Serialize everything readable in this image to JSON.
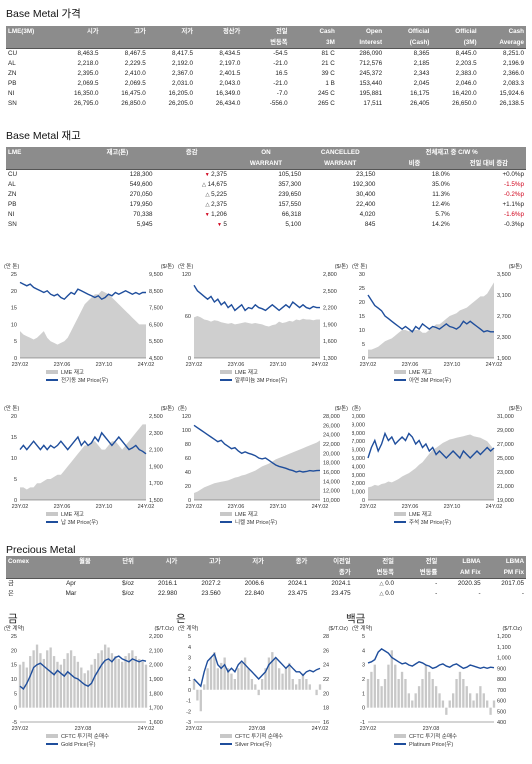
{
  "sections": {
    "price_title": "Base Metal 가격",
    "stock_title": "Base Metal 재고",
    "precious_title": "Precious Metal"
  },
  "price_table": {
    "headers": [
      [
        "LME(3M)",
        ""
      ],
      [
        "시가",
        ""
      ],
      [
        "고가",
        ""
      ],
      [
        "저가",
        ""
      ],
      [
        "정산가",
        ""
      ],
      [
        "전일",
        "변동폭"
      ],
      [
        "Cash",
        "3M"
      ],
      [
        "Open",
        "Interest"
      ],
      [
        "Official",
        "(Cash)"
      ],
      [
        "Official",
        "(3M)"
      ],
      [
        "Cash",
        "Average"
      ]
    ],
    "rows": [
      [
        "CU",
        "8,463.5",
        "8,467.5",
        "8,417.5",
        "8,434.5",
        "-54.5",
        "81 C",
        "286,090",
        "8,365",
        "8,445.0",
        "8,251.0"
      ],
      [
        "AL",
        "2,218.0",
        "2,229.5",
        "2,192.0",
        "2,197.0",
        "-21.0",
        "21 C",
        "712,576",
        "2,185",
        "2,203.5",
        "2,196.9"
      ],
      [
        "ZN",
        "2,395.0",
        "2,410.0",
        "2,367.0",
        "2,401.5",
        "16.5",
        "39 C",
        "245,372",
        "2,343",
        "2,383.0",
        "2,366.0"
      ],
      [
        "PB",
        "2,069.5",
        "2,069.5",
        "2,031.0",
        "2,043.0",
        "-21.0",
        "1 B",
        "153,440",
        "2,045",
        "2,046.0",
        "2,083.3"
      ],
      [
        "NI",
        "16,350.0",
        "16,475.0",
        "16,205.0",
        "16,349.0",
        "-7.0",
        "245 C",
        "195,881",
        "16,175",
        "16,420.0",
        "15,924.6"
      ],
      [
        "SN",
        "26,795.0",
        "26,850.0",
        "26,205.0",
        "26,434.0",
        "-556.0",
        "265 C",
        "17,511",
        "26,405",
        "26,650.0",
        "26,138.5"
      ]
    ]
  },
  "stock_table": {
    "headers": [
      "LME",
      "재고(톤)",
      "증감",
      "ON",
      "CANCELLED",
      "전체재고 중 C/W %"
    ],
    "headers2": [
      "",
      "",
      "",
      "WARRANT",
      "WARRANT",
      "비중",
      "전일 대비 증감"
    ],
    "rows": [
      {
        "metal": "CU",
        "stock": "128,300",
        "change": "2,375",
        "dir": "dn",
        "on": "105,150",
        "cancelled": "23,150",
        "share": "18.0%",
        "delta": "+0.0%p",
        "neg": false
      },
      {
        "metal": "AL",
        "stock": "549,600",
        "change": "14,675",
        "dir": "up",
        "on": "357,300",
        "cancelled": "192,300",
        "share": "35.0%",
        "delta": "-1.5%p",
        "neg": true
      },
      {
        "metal": "ZN",
        "stock": "270,050",
        "change": "5,225",
        "dir": "up",
        "on": "239,650",
        "cancelled": "30,400",
        "share": "11.3%",
        "delta": "-0.2%p",
        "neg": true
      },
      {
        "metal": "PB",
        "stock": "179,950",
        "change": "2,375",
        "dir": "up",
        "on": "157,550",
        "cancelled": "22,400",
        "share": "12.4%",
        "delta": "+1.1%p",
        "neg": false
      },
      {
        "metal": "NI",
        "stock": "70,338",
        "change": "1,206",
        "dir": "dn",
        "on": "66,318",
        "cancelled": "4,020",
        "share": "5.7%",
        "delta": "-1.6%p",
        "neg": true
      },
      {
        "metal": "SN",
        "stock": "5,945",
        "change": "5",
        "dir": "dn",
        "on": "5,100",
        "cancelled": "845",
        "share": "14.2%",
        "delta": "-0.3%p",
        "neg": false
      }
    ]
  },
  "precious_table": {
    "headers": [
      [
        "Comex",
        ""
      ],
      [
        "월물",
        ""
      ],
      [
        "단위",
        ""
      ],
      [
        "시가",
        ""
      ],
      [
        "고가",
        ""
      ],
      [
        "저가",
        ""
      ],
      [
        "종가",
        ""
      ],
      [
        "이전일",
        "종가"
      ],
      [
        "전일",
        "변동폭"
      ],
      [
        "전일",
        "변동률"
      ],
      [
        "LBMA",
        "AM Fix"
      ],
      [
        "LBMA",
        "PM Fix"
      ]
    ],
    "rows": [
      [
        "금",
        "Apr",
        "$/oz",
        "2016.1",
        "2027.2",
        "2006.6",
        "2024.1",
        "2024.1",
        "0.0",
        "-",
        "2020.35",
        "2017.05"
      ],
      [
        "은",
        "Mar",
        "$/oz",
        "22.980",
        "23.560",
        "22.840",
        "23.475",
        "23.475",
        "0.0",
        "-",
        "-",
        "-"
      ]
    ]
  },
  "base_charts": [
    {
      "left_unit": "(만 톤)",
      "right_unit": "($/톤)",
      "left_ticks": [
        "0",
        "5",
        "10",
        "15",
        "20",
        "25"
      ],
      "right_ticks": [
        "4,500",
        "5,500",
        "6,500",
        "7,500",
        "8,500",
        "9,500"
      ],
      "legend1": "LME 재고",
      "legend2": "전기동 3M Price(우)",
      "x_ticks": [
        "23Y.02",
        "23Y.06",
        "23Y.10",
        "24Y.02"
      ],
      "stock": [
        8,
        7,
        6.5,
        6,
        5.5,
        6,
        7,
        8,
        6,
        5,
        4.5,
        4,
        4.5,
        5,
        6,
        8,
        10,
        12,
        14,
        16,
        17,
        18,
        19,
        19,
        20,
        19.5,
        19,
        18,
        17,
        16,
        15,
        14,
        13,
        12,
        11,
        10,
        10,
        10
      ],
      "price": [
        9000,
        8900,
        8800,
        8900,
        8700,
        8600,
        8500,
        8400,
        8500,
        8300,
        8200,
        8300,
        8100,
        8000,
        8200,
        8400,
        8300,
        8600,
        8500,
        8400,
        8300,
        8200,
        8100,
        8200,
        8000,
        8100,
        8300,
        8200,
        8400,
        8300,
        8400,
        8500,
        8400,
        8300,
        8400,
        8300,
        8400,
        8400
      ]
    },
    {
      "left_unit": "(만 톤)",
      "right_unit": "($/톤)",
      "left_ticks": [
        "0",
        "60",
        "120"
      ],
      "right_ticks": [
        "1,300",
        "1,600",
        "1,900",
        "2,200",
        "2,500",
        "2,800"
      ],
      "legend1": "LME 재고",
      "legend2": "알루미늄 3M Price(우)",
      "x_ticks": [
        "23Y.02",
        "23Y.06",
        "23Y.10",
        "24Y.02"
      ],
      "stock": [
        58,
        60,
        58,
        55,
        54,
        52,
        54,
        53,
        51,
        50,
        49,
        50,
        48,
        49,
        50,
        51,
        50,
        49,
        50,
        49,
        48,
        46,
        45,
        47,
        48,
        52,
        50,
        51,
        53,
        52,
        55,
        54,
        56,
        55,
        55,
        54,
        55,
        55
      ],
      "price": [
        2600,
        2500,
        2450,
        2400,
        2350,
        2400,
        2300,
        2350,
        2250,
        2300,
        2200,
        2250,
        2150,
        2200,
        2250,
        2150,
        2200,
        2180,
        2250,
        2200,
        2180,
        2150,
        2200,
        2250,
        2200,
        2150,
        2200,
        2250,
        2200,
        2300,
        2250,
        2200,
        2250,
        2200,
        2180,
        2220,
        2200,
        2200
      ]
    },
    {
      "left_unit": "(만 톤)",
      "right_unit": "($/톤)",
      "left_ticks": [
        "0",
        "5",
        "10",
        "15",
        "20",
        "25",
        "30"
      ],
      "right_ticks": [
        "1,900",
        "2,300",
        "2,700",
        "3,100",
        "3,500"
      ],
      "legend1": "LME 재고",
      "legend2": "아연 3M Price(우)",
      "x_ticks": [
        "23Y.02",
        "23Y.06",
        "23Y.10",
        "24Y.02"
      ],
      "stock": [
        3,
        3,
        3.5,
        4,
        5,
        6,
        6.5,
        7,
        8,
        9,
        10,
        10,
        9.5,
        10,
        10,
        10,
        9,
        9,
        10,
        11,
        12,
        12,
        13,
        14,
        15,
        15.5,
        16,
        17,
        17.5,
        18,
        19,
        20,
        21,
        22,
        22,
        23,
        25,
        27
      ],
      "price": [
        3100,
        3000,
        2900,
        2850,
        2800,
        2700,
        2650,
        2600,
        2550,
        2500,
        2450,
        2500,
        2450,
        2400,
        2500,
        2450,
        2550,
        2500,
        2450,
        2500,
        2480,
        2450,
        2500,
        2550,
        2500,
        2480,
        2450,
        2500,
        2600,
        2550,
        2600,
        2550,
        2500,
        2450,
        2400,
        2420,
        2400,
        2400
      ]
    },
    {
      "left_unit": "(만 톤)",
      "right_unit": "($/톤)",
      "left_ticks": [
        "0",
        "5",
        "10",
        "15",
        "20"
      ],
      "right_ticks": [
        "1,500",
        "1,700",
        "1,900",
        "2,100",
        "2,300",
        "2,500"
      ],
      "legend1": "LME 재고",
      "legend2": "납 3M Price(우)",
      "x_ticks": [
        "23Y.02",
        "23Y.06",
        "23Y.10",
        "24Y.02"
      ],
      "stock": [
        3,
        3,
        2.5,
        3,
        3,
        4,
        4,
        4.5,
        5,
        5,
        5.5,
        6,
        6,
        7,
        8,
        9,
        10,
        11,
        12,
        13,
        13,
        14,
        14,
        13,
        12,
        12,
        13,
        14,
        14,
        13,
        12,
        13,
        14,
        15,
        16,
        17,
        18,
        18
      ],
      "price": [
        2100,
        2150,
        2100,
        2150,
        2200,
        2150,
        2100,
        2150,
        2100,
        2150,
        2120,
        2150,
        2200,
        2150,
        2100,
        2150,
        2200,
        2250,
        2150,
        2200,
        2150,
        2180,
        2250,
        2200,
        2300,
        2250,
        2200,
        2150,
        2200,
        2250,
        2200,
        2150,
        2100,
        2120,
        2150,
        2100,
        2080,
        2050
      ]
    },
    {
      "left_unit": "(톤)",
      "right_unit": "($/톤)",
      "left_ticks": [
        "0",
        "20",
        "40",
        "60",
        "80",
        "100",
        "120"
      ],
      "right_ticks": [
        "10,000",
        "12,000",
        "14,000",
        "16,000",
        "18,000",
        "20,000",
        "22,000",
        "24,000",
        "26,000",
        "28,000"
      ],
      "legend1": "LME 재고",
      "legend2": "니켈 3M Price(우)",
      "x_ticks": [
        "23Y.02",
        "23Y.06",
        "23Y.10",
        "24Y.02"
      ],
      "stock": [
        10,
        12,
        15,
        18,
        20,
        22,
        24,
        25,
        26,
        27,
        28,
        30,
        32,
        33,
        35,
        36,
        38,
        40,
        42,
        45,
        48,
        50,
        52,
        55,
        58,
        60,
        62,
        64,
        66,
        68,
        70,
        72,
        74,
        76,
        78,
        80,
        82,
        85
      ],
      "price": [
        26000,
        25500,
        25000,
        24500,
        24000,
        23500,
        23000,
        22500,
        22800,
        22000,
        21500,
        21000,
        21200,
        20500,
        20000,
        20300,
        20000,
        19800,
        19500,
        19000,
        18800,
        19000,
        18500,
        18000,
        17500,
        17200,
        17000,
        16800,
        16500,
        16300,
        16000,
        16200,
        16000,
        16100,
        16300,
        16200,
        16300,
        16349
      ]
    },
    {
      "left_unit": "(톤)",
      "right_unit": "($/톤)",
      "left_ticks": [
        "0",
        "1,000",
        "2,000",
        "3,000",
        "4,000",
        "5,000",
        "6,000",
        "7,000",
        "8,000",
        "9,000",
        "10,000"
      ],
      "right_ticks": [
        "19,000",
        "21,000",
        "23,000",
        "25,000",
        "27,000",
        "29,000",
        "31,000"
      ],
      "legend1": "LME 재고",
      "legend2": "주석 3M Price(우)",
      "x_ticks": [
        "23Y.02",
        "23Y.06",
        "23Y.10",
        "24Y.02"
      ],
      "stock": [
        1500,
        1600,
        1800,
        1700,
        1900,
        2000,
        2200,
        2100,
        2300,
        2500,
        2800,
        3000,
        3200,
        3500,
        3800,
        4200,
        4500,
        5000,
        5500,
        6000,
        6200,
        6500,
        6800,
        7000,
        7200,
        7300,
        7400,
        7500,
        7600,
        7700,
        7800,
        7600,
        7500,
        7400,
        7200,
        7000,
        6500,
        6000
      ],
      "price": [
        25000,
        26500,
        27500,
        26000,
        27000,
        28500,
        27500,
        28000,
        27000,
        27500,
        28000,
        27500,
        28500,
        28000,
        27000,
        27500,
        26500,
        27000,
        26000,
        26500,
        25500,
        26000,
        25500,
        25000,
        25500,
        26000,
        25500,
        25000,
        26000,
        25500,
        25000,
        25500,
        26000,
        25500,
        26000,
        26500,
        26000,
        26434
      ]
    }
  ],
  "precious_labels": [
    "금",
    "은",
    "백금"
  ],
  "precious_charts": [
    {
      "left_unit": "(만 계약)",
      "right_unit": "($/T.Oz)",
      "left_ticks": [
        "-5",
        "0",
        "5",
        "10",
        "15",
        "20",
        "25"
      ],
      "right_ticks": [
        "1,600",
        "1,700",
        "1,800",
        "1,900",
        "2,000",
        "2,100",
        "2,200"
      ],
      "legend1": "CFTC 투기적 순매수",
      "legend2": "Gold Price(우)",
      "x_ticks": [
        "23Y.02",
        "23Y.08",
        "24Y.02"
      ],
      "pos": [
        15,
        16,
        14,
        18,
        20,
        22,
        19,
        17,
        20,
        21,
        18,
        16,
        15,
        17,
        19,
        20,
        18,
        16,
        14,
        12,
        13,
        15,
        17,
        19,
        20,
        22,
        21,
        19,
        18,
        17,
        16,
        18,
        19,
        20,
        18,
        17,
        16,
        15
      ],
      "price": [
        1850,
        1830,
        1870,
        1920,
        1980,
        2000,
        2010,
        1990,
        1970,
        1950,
        1930,
        1960,
        1940,
        1920,
        1950,
        1930,
        1910,
        1900,
        1880,
        1860,
        1850,
        1870,
        1920,
        1960,
        2000,
        2030,
        2040,
        2020,
        2050,
        2060,
        2040,
        2030,
        2020,
        2040,
        2030,
        2020,
        2030,
        2024
      ]
    },
    {
      "left_unit": "(만 계약)",
      "right_unit": "($/T.Oz)",
      "left_ticks": [
        "-3",
        "-2",
        "-1",
        "0",
        "1",
        "2",
        "3",
        "4",
        "5"
      ],
      "right_ticks": [
        "16",
        "18",
        "20",
        "22",
        "24",
        "26",
        "28"
      ],
      "legend1": "CFTC 투기적 순매수",
      "legend2": "Silver Price(우)",
      "x_ticks": [
        "23Y.02",
        "23Y.08",
        "24Y.02"
      ],
      "pos": [
        1,
        -1,
        -2,
        0.5,
        2,
        3,
        3.5,
        2,
        2.5,
        3,
        2,
        1.5,
        1,
        2,
        2.5,
        3,
        2,
        1,
        0.5,
        -0.5,
        1,
        2,
        3,
        3.5,
        3,
        2,
        1.5,
        2,
        2.5,
        1,
        0.5,
        1,
        1.5,
        1,
        0.5,
        0,
        -0.5,
        0.5
      ],
      "price": [
        22,
        21.5,
        21,
        23,
        24.5,
        25,
        25.5,
        24,
        23.5,
        24,
        23,
        23.5,
        23,
        24,
        24.5,
        24,
        23.5,
        23,
        22.5,
        22,
        22.5,
        23,
        24,
        24.5,
        25,
        24.5,
        24,
        23.5,
        24,
        23.5,
        23,
        23,
        22.5,
        23,
        23.2,
        23,
        23.3,
        23.475
      ]
    },
    {
      "left_unit": "(만 계약)",
      "right_unit": "($/T.Oz)",
      "left_ticks": [
        "-1",
        "0",
        "1",
        "2",
        "3",
        "4",
        "5"
      ],
      "right_ticks": [
        "400",
        "500",
        "600",
        "700",
        "800",
        "900",
        "1,000",
        "1,100",
        "1,200"
      ],
      "legend1": "CFTC 투기적 순매수",
      "legend2": "Platinum Price(우)",
      "x_ticks": [
        "23Y.02",
        "23Y.08"
      ],
      "pos": [
        2,
        2.5,
        3,
        2,
        1.5,
        2,
        3,
        4,
        3,
        2,
        2.5,
        2,
        1,
        0.5,
        1,
        1.5,
        2,
        3,
        2.5,
        2,
        1.5,
        1,
        0.5,
        -0.5,
        0.5,
        1,
        2,
        2.5,
        2,
        1.5,
        1,
        0.5,
        1,
        1.5,
        1,
        0.5,
        -0.5,
        0.5
      ],
      "price": [
        950,
        960,
        980,
        1050,
        1080,
        1060,
        1040,
        1000,
        980,
        960,
        940,
        950,
        930,
        920,
        940,
        960,
        950,
        930,
        920,
        900,
        910,
        930,
        940,
        920,
        910,
        930,
        940,
        920,
        900,
        910,
        930,
        920,
        910,
        900,
        910,
        900,
        910,
        905
      ]
    }
  ]
}
